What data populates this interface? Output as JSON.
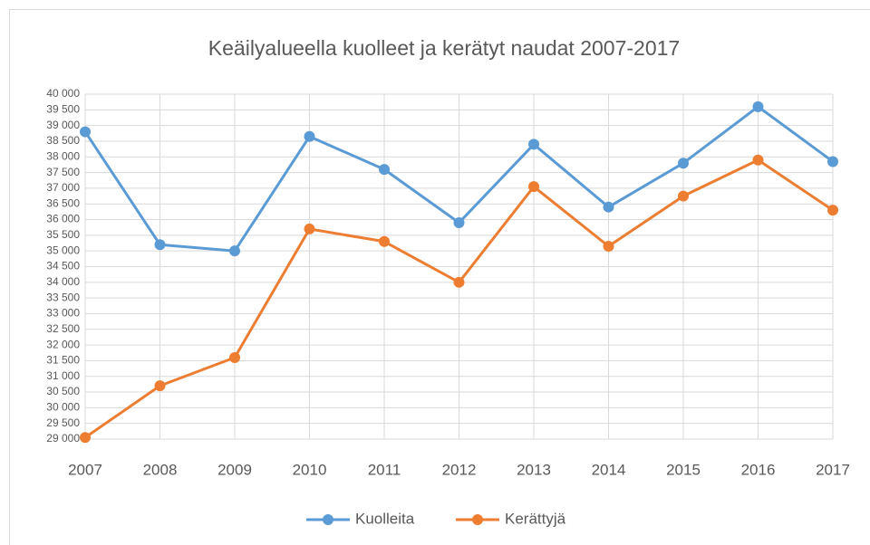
{
  "chart_data": {
    "type": "line",
    "title": "Keäilyalueella kuolleet ja kerätyt naudat 2007-2017",
    "categories": [
      "2007",
      "2008",
      "2009",
      "2010",
      "2011",
      "2012",
      "2013",
      "2014",
      "2015",
      "2016",
      "2017"
    ],
    "series": [
      {
        "name": "Kuolleita",
        "color": "#5b9bd5",
        "values": [
          38800,
          35200,
          35000,
          38650,
          37600,
          35900,
          38400,
          36400,
          37800,
          39600,
          37850
        ]
      },
      {
        "name": "Kerättyjä",
        "color": "#ed7d31",
        "values": [
          29050,
          30700,
          31600,
          35700,
          35300,
          34000,
          37050,
          35150,
          36750,
          37900,
          36300
        ]
      }
    ],
    "ylim": [
      29000,
      40000
    ],
    "yticks": [
      {
        "value": 29000,
        "label": "29 000"
      },
      {
        "value": 29500,
        "label": "29 500"
      },
      {
        "value": 30000,
        "label": "30 000"
      },
      {
        "value": 30500,
        "label": "30 500"
      },
      {
        "value": 31000,
        "label": "31 000"
      },
      {
        "value": 31500,
        "label": "31 500"
      },
      {
        "value": 32000,
        "label": "32 000"
      },
      {
        "value": 32500,
        "label": "32 500"
      },
      {
        "value": 33000,
        "label": "33 000"
      },
      {
        "value": 33500,
        "label": "33 500"
      },
      {
        "value": 34000,
        "label": "34 000"
      },
      {
        "value": 34500,
        "label": "34 500"
      },
      {
        "value": 35000,
        "label": "35 000"
      },
      {
        "value": 35500,
        "label": "35 500"
      },
      {
        "value": 36000,
        "label": "36 000"
      },
      {
        "value": 36500,
        "label": "36 500"
      },
      {
        "value": 37000,
        "label": "37 000"
      },
      {
        "value": 37500,
        "label": "37 500"
      },
      {
        "value": 38000,
        "label": "38 000"
      },
      {
        "value": 38500,
        "label": "38 500"
      },
      {
        "value": 39000,
        "label": "39 000"
      },
      {
        "value": 39500,
        "label": "39 500"
      },
      {
        "value": 40000,
        "label": "40 000"
      }
    ],
    "grid": true,
    "legend": "bottom"
  }
}
